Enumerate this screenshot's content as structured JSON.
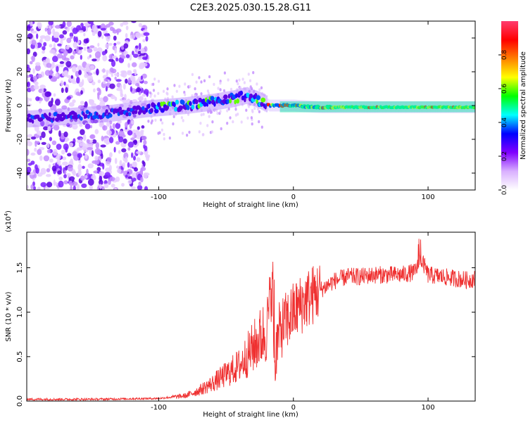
{
  "title": "C2E3.2025.030.15.28.G11",
  "colorbar": {
    "label": "Normalized spectral amplitude",
    "ticks": [
      "0.0",
      "0.2",
      "0.4",
      "0.6",
      "0.8"
    ],
    "stops": [
      "#ffffff",
      "#d9b0ff",
      "#8000ff",
      "#0000ff",
      "#00ffff",
      "#00ff00",
      "#ffff00",
      "#ff8000",
      "#ff0000",
      "#ff3c6e"
    ]
  },
  "chart_data": [
    {
      "type": "heatmap",
      "xlabel": "Height of straight line (km)",
      "ylabel": "Frequency (Hz)",
      "xlim": [
        -198,
        135
      ],
      "ylim": [
        -50,
        50
      ],
      "x_ticks": [
        "-100",
        "0",
        "100"
      ],
      "y_ticks": [
        "40",
        "20",
        "0",
        "-20",
        "-40"
      ],
      "tick_values_x": [
        -100,
        0,
        100
      ],
      "tick_values_y": [
        40,
        20,
        0,
        -20,
        -40
      ],
      "ridge": {
        "x": [
          -198,
          -140,
          -110,
          -80,
          -60,
          -45,
          -35,
          -25,
          -18,
          -10,
          0,
          20,
          50,
          80,
          100,
          120,
          135
        ],
        "y": [
          -8,
          -5,
          -2,
          0,
          2,
          4,
          6,
          3,
          0,
          0,
          0,
          -1,
          -1,
          -1,
          -1,
          -1,
          -1
        ]
      }
    },
    {
      "type": "line",
      "xlabel": "Height of straight line (km)",
      "ylabel": "SNR (10 * v/v)",
      "exponent_label": "(x10",
      "exponent": "4",
      "xlim": [
        -198,
        135
      ],
      "ylim": [
        0,
        1.9
      ],
      "x_ticks": [
        "-100",
        "0",
        "100"
      ],
      "y_ticks": [
        "0.0",
        "0.5",
        "1.0",
        "1.5"
      ],
      "tick_values_x": [
        -100,
        0,
        100
      ],
      "tick_values_y": [
        0,
        0.5,
        1.0,
        1.5
      ],
      "color": "#ef3030",
      "series": [
        {
          "name": "SNR",
          "x": [
            -198,
            -150,
            -100,
            -80,
            -70,
            -60,
            -50,
            -40,
            -35,
            -30,
            -25,
            -20,
            -16,
            -14,
            -10,
            -5,
            0,
            10,
            20,
            30,
            40,
            50,
            60,
            70,
            80,
            90,
            95,
            100,
            110,
            120,
            130,
            135
          ],
          "values": [
            0.02,
            0.02,
            0.03,
            0.06,
            0.12,
            0.2,
            0.3,
            0.4,
            0.5,
            0.6,
            0.7,
            0.8,
            1.3,
            0.5,
            0.8,
            0.9,
            1.0,
            1.15,
            1.25,
            1.35,
            1.4,
            1.4,
            1.42,
            1.42,
            1.42,
            1.45,
            1.6,
            1.42,
            1.4,
            1.38,
            1.36,
            1.38
          ]
        }
      ]
    }
  ]
}
